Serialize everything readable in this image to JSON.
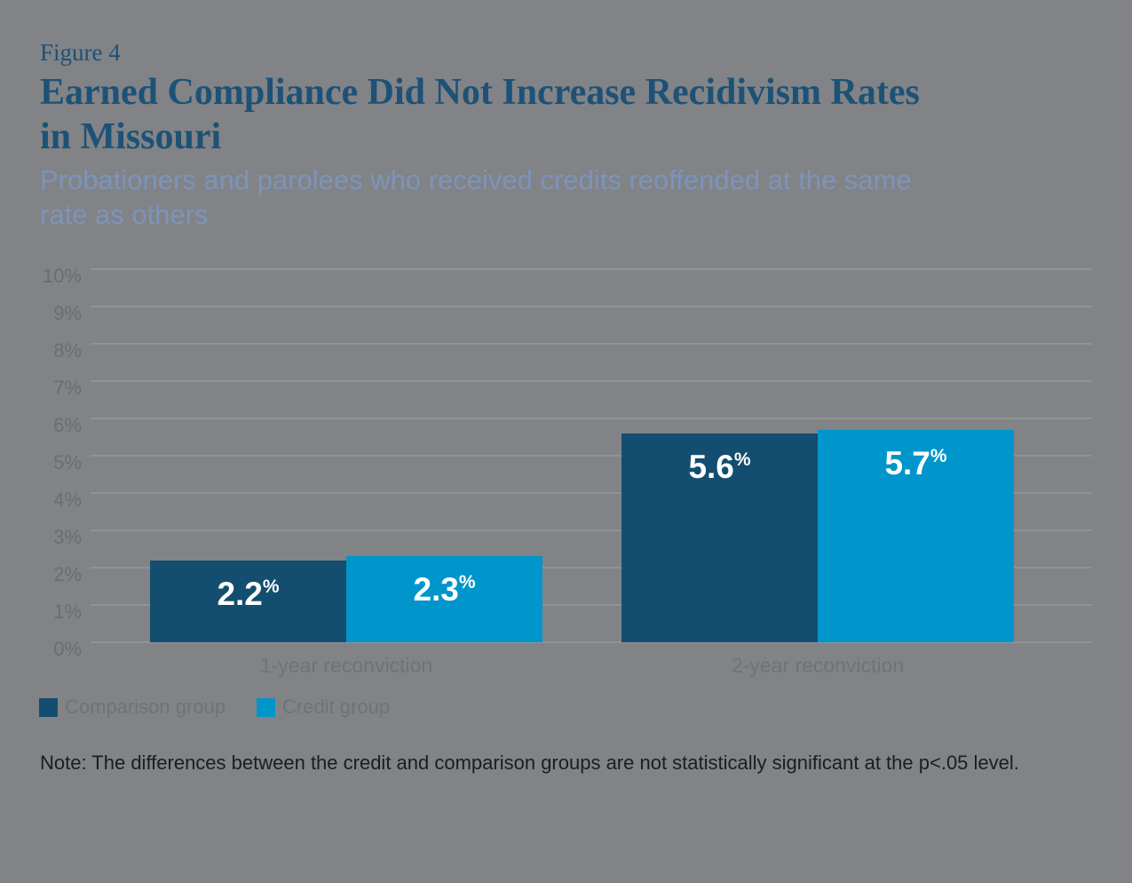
{
  "header": {
    "figure_label": "Figure 4",
    "title_lines": [
      "Earned Compliance Did Not Increase Recidivism Rates",
      "in Missouri"
    ],
    "subtitle_lines": [
      "Probationers and parolees who received credits reoffended at the same",
      "rate as others"
    ]
  },
  "note": "Note: The differences between the credit and comparison groups are not statistically significant at the p<.05 level.",
  "colors": {
    "background": "#818387",
    "title": "#1d5276",
    "subtitle": "#7d94ba",
    "gridline": "#96989b",
    "axis_text": "#6b6d70",
    "note_text": "#1c1d1e"
  },
  "chart_data": {
    "type": "bar",
    "title": "Earned Compliance Did Not Increase Recidivism Rates in Missouri",
    "subtitle": "Probationers and parolees who received credits reoffended at the same rate as others",
    "categories": [
      "1-year reconviction",
      "2-year reconviction"
    ],
    "series": [
      {
        "name": "Comparison group",
        "color": "#134e70",
        "values": [
          2.2,
          5.6
        ],
        "labels": [
          "2.2",
          "5.6"
        ]
      },
      {
        "name": "Credit group",
        "color": "#0095cb",
        "values": [
          2.3,
          5.7
        ],
        "labels": [
          "2.3",
          "5.7"
        ]
      }
    ],
    "value_suffix": "%",
    "xlabel": "",
    "ylabel": "",
    "ylim": [
      0,
      10
    ],
    "ytick_step": 1,
    "yticks": [
      "0%",
      "1%",
      "2%",
      "3%",
      "4%",
      "5%",
      "6%",
      "7%",
      "8%",
      "9%",
      "10%"
    ],
    "grid": true,
    "legend_position": "bottom-left"
  }
}
